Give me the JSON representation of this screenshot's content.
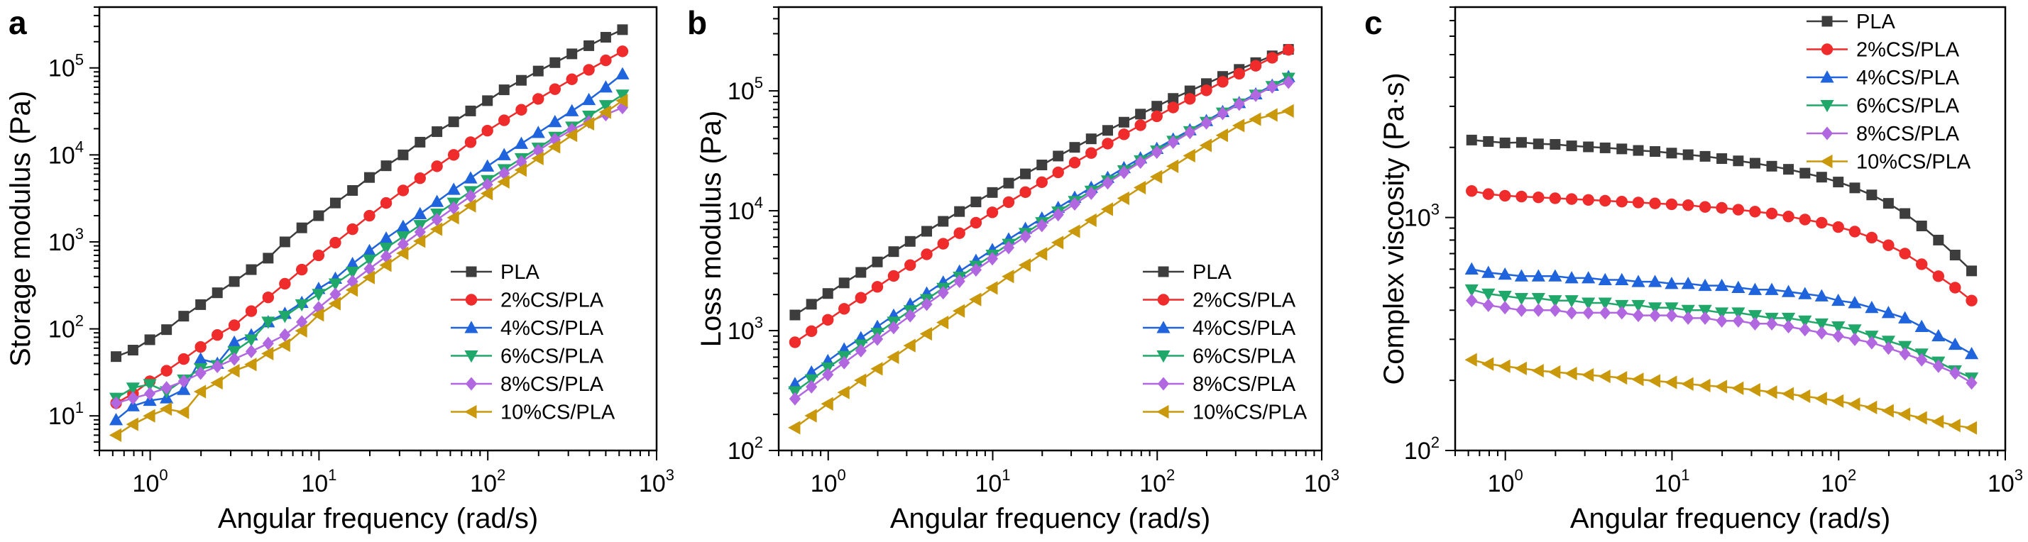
{
  "colors": {
    "PLA": "#3d3d3d",
    "2%CS/PLA": "#ef2b2b",
    "4%CS/PLA": "#1f64dc",
    "6%CS/PLA": "#20a86a",
    "8%CS/PLA": "#b067e0",
    "10%CS/PLA": "#c9980b"
  },
  "markers": {
    "PLA": "square",
    "2%CS/PLA": "circle",
    "4%CS/PLA": "triangle-up",
    "6%CS/PLA": "triangle-down",
    "8%CS/PLA": "diamond",
    "10%CS/PLA": "triangle-left"
  },
  "chart_data": [
    {
      "panel_letter": "a",
      "type": "line",
      "xscale": "log",
      "yscale": "log",
      "xlabel": "Angular frequency (rad/s)",
      "ylabel": "Storage modulus (Pa)",
      "xlim": [
        0.5,
        1000
      ],
      "ylim": [
        4,
        500000
      ],
      "xticks": [
        1,
        10,
        100,
        1000
      ],
      "yticks": [
        10,
        100,
        1000,
        10000,
        100000
      ],
      "legend_position": "bottom-right",
      "x": [
        0.628,
        0.791,
        0.995,
        1.25,
        1.58,
        1.99,
        2.5,
        3.15,
        3.97,
        5.0,
        6.28,
        7.91,
        9.95,
        12.5,
        15.8,
        19.9,
        25.0,
        31.5,
        39.7,
        50.0,
        62.8,
        79.1,
        99.5,
        125,
        158,
        199,
        250,
        315,
        397,
        500,
        628
      ],
      "series": [
        {
          "name": "PLA",
          "values": [
            48,
            57,
            75,
            98,
            140,
            190,
            260,
            350,
            480,
            650,
            1000,
            1450,
            2000,
            2800,
            3900,
            5500,
            7500,
            10000,
            14000,
            18500,
            24000,
            32000,
            42000,
            56000,
            72000,
            92000,
            115000,
            145000,
            180000,
            225000,
            275000
          ]
        },
        {
          "name": "2%CS/PLA",
          "values": [
            14,
            18,
            25,
            33,
            45,
            62,
            85,
            110,
            160,
            230,
            330,
            480,
            700,
            980,
            1400,
            2000,
            2800,
            3900,
            5400,
            7400,
            10000,
            14000,
            19000,
            25000,
            33000,
            44000,
            57000,
            74000,
            95000,
            122000,
            155000
          ]
        },
        {
          "name": "4%CS/PLA",
          "values": [
            9,
            13,
            15,
            16,
            20,
            45,
            40,
            70,
            85,
            120,
            150,
            200,
            290,
            380,
            560,
            790,
            1100,
            1500,
            2100,
            2900,
            4000,
            5400,
            7400,
            10000,
            13500,
            18000,
            24000,
            32000,
            43000,
            60000,
            85000
          ]
        },
        {
          "name": "6%CS/PLA",
          "values": [
            16,
            21,
            23,
            19,
            26,
            35,
            38,
            55,
            75,
            120,
            140,
            190,
            250,
            330,
            450,
            620,
            850,
            1150,
            1550,
            2100,
            2800,
            3800,
            5100,
            6800,
            9100,
            12000,
            16000,
            21000,
            28000,
            37000,
            49000
          ]
        },
        {
          "name": "8%CS/PLA",
          "values": [
            14,
            16,
            18,
            21,
            25,
            31,
            37,
            45,
            55,
            68,
            85,
            120,
            175,
            250,
            350,
            490,
            680,
            940,
            1300,
            1800,
            2450,
            3350,
            4550,
            6150,
            8300,
            11200,
            15000,
            19500,
            24000,
            29000,
            35000
          ]
        },
        {
          "name": "10%CS/PLA",
          "values": [
            6,
            8,
            10,
            12,
            11,
            19,
            24,
            33,
            39,
            52,
            65,
            95,
            145,
            195,
            280,
            390,
            540,
            740,
            1020,
            1400,
            1900,
            2600,
            3600,
            4900,
            6700,
            9100,
            12400,
            16800,
            22800,
            31000,
            42000
          ]
        }
      ]
    },
    {
      "panel_letter": "b",
      "type": "line",
      "xscale": "log",
      "yscale": "log",
      "xlabel": "Angular frequency (rad/s)",
      "ylabel": "Loss modulus (Pa)",
      "xlim": [
        0.5,
        1000
      ],
      "ylim": [
        100,
        500000
      ],
      "xticks": [
        1,
        10,
        100,
        1000
      ],
      "yticks": [
        100,
        1000,
        10000,
        100000
      ],
      "legend_position": "bottom-right",
      "x": [
        0.628,
        0.791,
        0.995,
        1.25,
        1.58,
        1.99,
        2.5,
        3.15,
        3.97,
        5.0,
        6.28,
        7.91,
        9.95,
        12.5,
        15.8,
        19.9,
        25.0,
        31.5,
        39.7,
        50.0,
        62.8,
        79.1,
        99.5,
        125,
        158,
        199,
        250,
        315,
        397,
        500,
        628
      ],
      "series": [
        {
          "name": "PLA",
          "values": [
            1350,
            1660,
            2040,
            2500,
            3060,
            3740,
            4560,
            5550,
            6740,
            8160,
            9850,
            11850,
            14200,
            17000,
            20300,
            24100,
            28600,
            33800,
            39800,
            46800,
            54800,
            64000,
            74500,
            86500,
            100000,
            115000,
            132000,
            151000,
            172000,
            196000,
            222000
          ]
        },
        {
          "name": "2%CS/PLA",
          "values": [
            800,
            990,
            1230,
            1520,
            1880,
            2320,
            2860,
            3520,
            4330,
            5310,
            6500,
            7950,
            9700,
            11800,
            14300,
            17300,
            20900,
            25200,
            30300,
            36300,
            43400,
            51700,
            61400,
            72700,
            85800,
            101000,
            119000,
            139000,
            162000,
            189000,
            220000
          ]
        },
        {
          "name": "4%CS/PLA",
          "values": [
            360,
            450,
            560,
            700,
            870,
            1080,
            1340,
            1660,
            2050,
            2530,
            3120,
            3840,
            4720,
            5790,
            7090,
            8660,
            10600,
            12900,
            15600,
            18900,
            22800,
            27500,
            33000,
            39500,
            47200,
            56300,
            67000,
            79500,
            94000,
            111000,
            131000
          ]
        },
        {
          "name": "6%CS/PLA",
          "values": [
            310,
            390,
            490,
            610,
            760,
            950,
            1180,
            1470,
            1820,
            2260,
            2800,
            3460,
            4270,
            5270,
            6490,
            7980,
            9790,
            12000,
            14600,
            17800,
            21600,
            26200,
            31600,
            38100,
            45800,
            54800,
            65500,
            78000,
            92500,
            109000,
            128000
          ]
        },
        {
          "name": "8%CS/PLA",
          "values": [
            270,
            340,
            430,
            540,
            680,
            850,
            1060,
            1330,
            1660,
            2070,
            2580,
            3210,
            3980,
            4930,
            6100,
            7530,
            9280,
            11400,
            14000,
            17100,
            20900,
            25400,
            30800,
            37300,
            45000,
            54100,
            64900,
            77500,
            92000,
            108000,
            118000
          ]
        },
        {
          "name": "10%CS/PLA",
          "values": [
            155,
            195,
            245,
            305,
            385,
            480,
            600,
            750,
            940,
            1170,
            1460,
            1820,
            2270,
            2830,
            3520,
            4370,
            5430,
            6740,
            8340,
            10300,
            12700,
            15600,
            19200,
            23500,
            28800,
            35100,
            42600,
            51400,
            58000,
            63000,
            68000
          ]
        }
      ]
    },
    {
      "panel_letter": "c",
      "type": "line",
      "xscale": "log",
      "yscale": "log",
      "xlabel": "Angular frequency (rad/s)",
      "ylabel": "Complex viscosity (Pa·s)",
      "xlim": [
        0.5,
        1000
      ],
      "ylim": [
        100,
        8000
      ],
      "xticks": [
        1,
        10,
        100,
        1000
      ],
      "yticks": [
        100,
        1000
      ],
      "legend_position": "top-right",
      "x": [
        0.628,
        0.791,
        0.995,
        1.25,
        1.58,
        1.99,
        2.5,
        3.15,
        3.97,
        5.0,
        6.28,
        7.91,
        9.95,
        12.5,
        15.8,
        19.9,
        25.0,
        31.5,
        39.7,
        50.0,
        62.8,
        79.1,
        99.5,
        125,
        158,
        199,
        250,
        315,
        397,
        500,
        628
      ],
      "series": [
        {
          "name": "PLA",
          "values": [
            2150,
            2120,
            2090,
            2100,
            2070,
            2060,
            2030,
            2010,
            1990,
            1970,
            1940,
            1920,
            1890,
            1860,
            1830,
            1790,
            1750,
            1710,
            1660,
            1610,
            1550,
            1490,
            1420,
            1340,
            1250,
            1150,
            1040,
            920,
            800,
            690,
            590
          ]
        },
        {
          "name": "2%CS/PLA",
          "values": [
            1300,
            1260,
            1240,
            1230,
            1220,
            1210,
            1200,
            1190,
            1180,
            1170,
            1160,
            1150,
            1140,
            1130,
            1110,
            1100,
            1080,
            1060,
            1040,
            1010,
            980,
            950,
            910,
            870,
            820,
            760,
            700,
            630,
            560,
            500,
            440
          ]
        },
        {
          "name": "4%CS/PLA",
          "values": [
            600,
            580,
            570,
            560,
            560,
            560,
            550,
            550,
            540,
            540,
            530,
            530,
            520,
            520,
            510,
            510,
            500,
            490,
            490,
            480,
            470,
            460,
            440,
            430,
            410,
            390,
            370,
            340,
            310,
            285,
            260
          ]
        },
        {
          "name": "6%CS/PLA",
          "values": [
            490,
            470,
            460,
            450,
            450,
            440,
            440,
            430,
            430,
            420,
            420,
            410,
            410,
            400,
            400,
            390,
            390,
            380,
            370,
            370,
            360,
            350,
            340,
            330,
            310,
            295,
            280,
            260,
            240,
            220,
            205
          ]
        },
        {
          "name": "8%CS/PLA",
          "values": [
            440,
            420,
            410,
            400,
            400,
            400,
            390,
            390,
            390,
            390,
            380,
            380,
            380,
            370,
            370,
            360,
            360,
            350,
            350,
            340,
            330,
            320,
            310,
            300,
            290,
            275,
            260,
            245,
            230,
            215,
            195
          ]
        },
        {
          "name": "10%CS/PLA",
          "values": [
            245,
            235,
            230,
            225,
            220,
            217,
            214,
            211,
            208,
            205,
            202,
            199,
            196,
            193,
            190,
            188,
            185,
            182,
            178,
            175,
            171,
            167,
            163,
            158,
            153,
            148,
            143,
            138,
            133,
            128,
            125
          ]
        }
      ]
    }
  ]
}
